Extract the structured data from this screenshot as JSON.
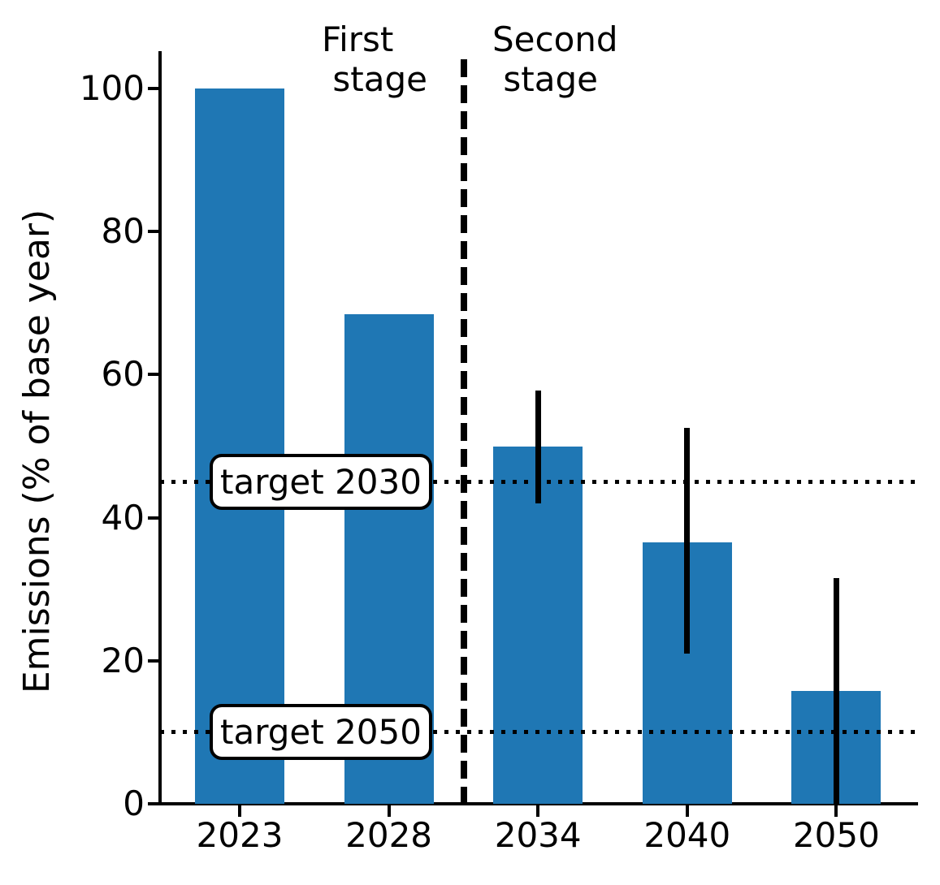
{
  "figure": {
    "background": "#ffffff",
    "text_color": "#000000"
  },
  "annotations": {
    "first_stage": "First\n stage",
    "second_stage": "Second\n stage"
  },
  "chart_data": {
    "type": "bar",
    "title": "",
    "xlabel": "",
    "ylabel": "Emissions (% of base year)",
    "categories": [
      "2023",
      "2028",
      "2034",
      "2040",
      "2050"
    ],
    "values": [
      100,
      68.5,
      50,
      36.5,
      15.75
    ],
    "error_bars": [
      null,
      null,
      {
        "low": 42,
        "high": 57.75
      },
      {
        "low": 21,
        "high": 52.5
      },
      {
        "low": 0,
        "high": 31.5
      }
    ],
    "yticks": [
      0,
      20,
      40,
      60,
      80,
      100
    ],
    "ylim": [
      0,
      105
    ],
    "grid": false,
    "legend_position": "none",
    "reference_lines": [
      {
        "label": "target 2030",
        "value": 45,
        "style": "dotted"
      },
      {
        "label": "target 2050",
        "value": 10,
        "style": "dotted"
      }
    ],
    "stage_divider": {
      "between": [
        "2028",
        "2034"
      ],
      "style": "dashed"
    },
    "bar_color": "#1f77b4",
    "line_color": "#000000"
  }
}
